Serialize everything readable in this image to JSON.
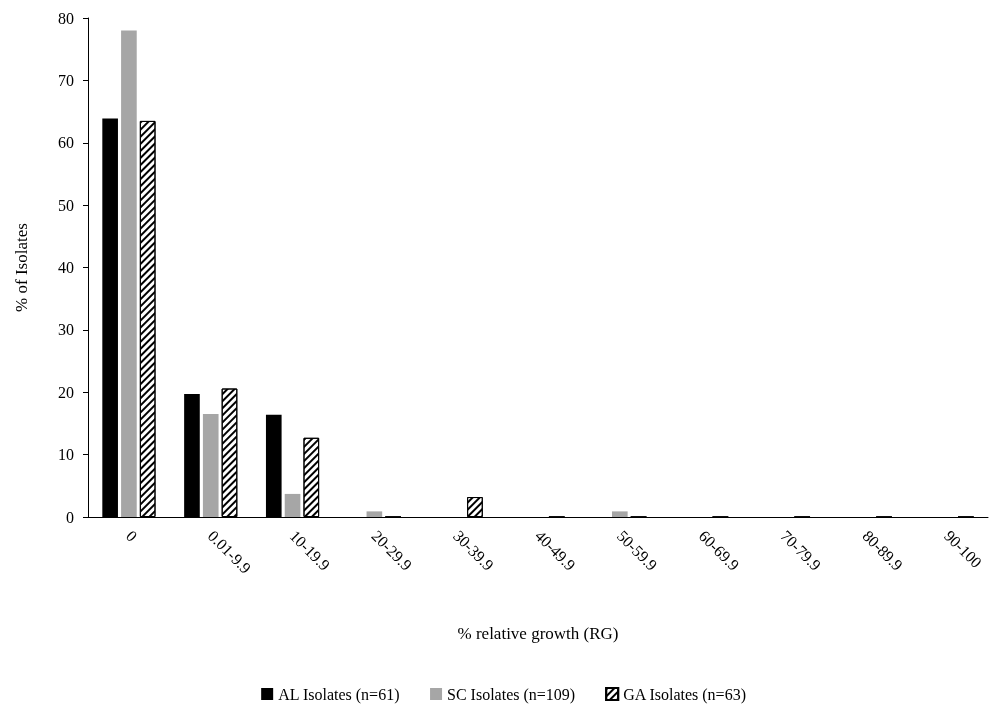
{
  "chart_data": {
    "type": "bar",
    "xlabel": "% relative growth (RG)",
    "ylabel": "% of Isolates",
    "categories": [
      "0",
      "0.01-9.9",
      "10-19.9",
      "20-29.9",
      "30-39.9",
      "40-49.9",
      "50-59.9",
      "60-69.9",
      "70-79.9",
      "80-89.9",
      "90-100"
    ],
    "series": [
      {
        "name": "AL Isolates (n=61)",
        "color": "#000000",
        "values": [
          63.9,
          19.7,
          16.4,
          0,
          0,
          0,
          0,
          0,
          0,
          0,
          0
        ]
      },
      {
        "name": "SC Isolates (n=109)",
        "color": "#a6a6a6",
        "values": [
          78.0,
          16.5,
          3.7,
          0.9,
          0,
          0,
          0.9,
          0,
          0,
          0,
          0
        ]
      },
      {
        "name": "GA Isolates (n=63)",
        "color": "#ffffff",
        "values": [
          63.5,
          20.6,
          12.7,
          0,
          3.2,
          0,
          0,
          0,
          0,
          0,
          0
        ]
      }
    ],
    "ylim": [
      0,
      80
    ],
    "yticks": [
      0,
      10,
      20,
      30,
      40,
      50,
      60,
      70,
      80
    ],
    "grid": false,
    "legend": "bottom"
  }
}
